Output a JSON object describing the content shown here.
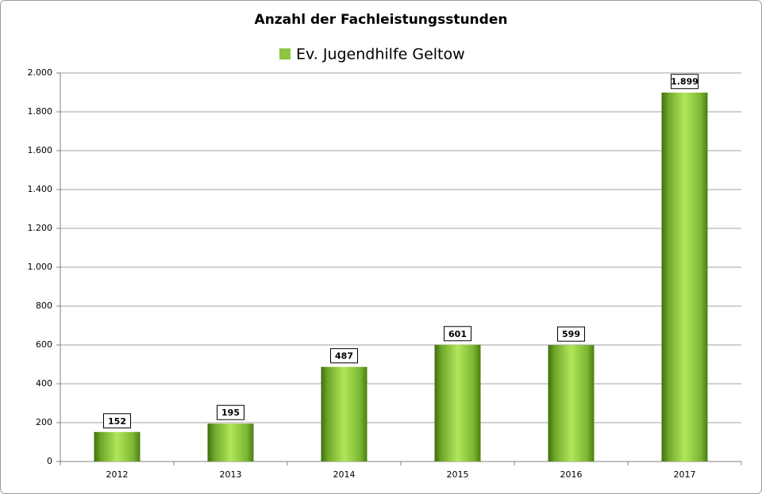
{
  "chart_data": {
    "type": "bar",
    "title": "Anzahl der Fachleistungsstunden",
    "categories": [
      "2012",
      "2013",
      "2014",
      "2015",
      "2016",
      "2017"
    ],
    "series": [
      {
        "name": "Ev. Jugendhilfe Geltow",
        "color": "#8cc63f",
        "values": [
          152,
          195,
          487,
          601,
          599,
          1899
        ],
        "value_labels": [
          "152",
          "195",
          "487",
          "601",
          "599",
          "1.899"
        ]
      }
    ],
    "ylim": [
      0,
      2000
    ],
    "yticks": [
      0,
      200,
      400,
      600,
      800,
      {
        "value": 1000,
        "label": "1.000"
      },
      {
        "value": 1200,
        "label": "1.200"
      },
      {
        "value": 1400,
        "label": "1.400"
      },
      {
        "value": 1600,
        "label": "1.600"
      },
      {
        "value": 1800,
        "label": "1.800"
      },
      {
        "value": 2000,
        "label": "2.000"
      }
    ],
    "grid": true
  }
}
